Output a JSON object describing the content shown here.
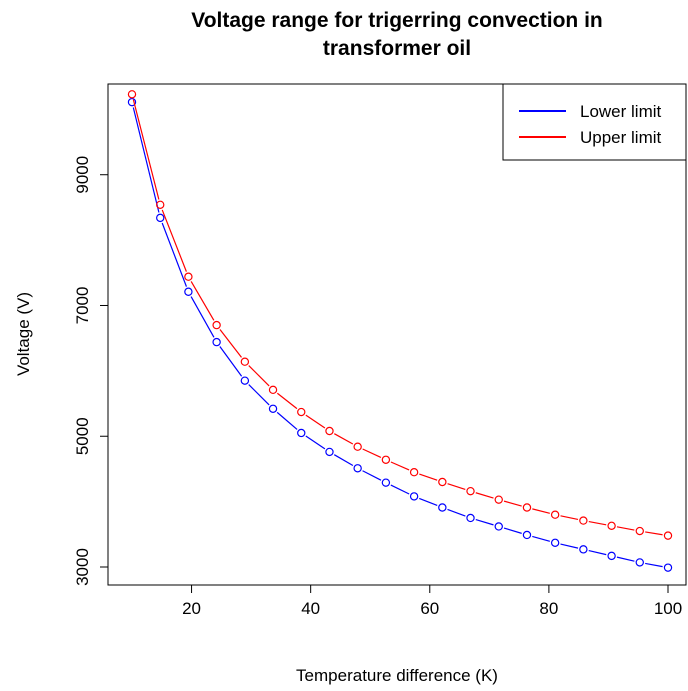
{
  "chart_data": {
    "type": "line",
    "title": "Voltage range for trigerring convection in transformer oil",
    "title_lines": [
      "Voltage range for trigerring convection in",
      "transformer oil"
    ],
    "xlabel": "Temperature difference (K)",
    "ylabel": "Voltage (V)",
    "xlim": [
      10,
      100
    ],
    "ylim": [
      3000,
      10250
    ],
    "x_ticks": [
      20,
      40,
      60,
      80,
      100
    ],
    "y_ticks": [
      3000,
      5000,
      7000,
      9000
    ],
    "grid": false,
    "legend_position": "top-right",
    "x": [
      10,
      14.74,
      19.47,
      24.21,
      28.95,
      33.68,
      38.42,
      43.16,
      47.89,
      52.63,
      57.37,
      62.11,
      66.84,
      71.58,
      76.32,
      81.05,
      85.79,
      90.53,
      95.26,
      100
    ],
    "series": [
      {
        "name": "Lower limit",
        "color": "#0000ff",
        "values": [
          10110,
          8340,
          7210,
          6440,
          5850,
          5420,
          5050,
          4760,
          4510,
          4290,
          4080,
          3910,
          3750,
          3620,
          3490,
          3370,
          3270,
          3170,
          3070,
          2990
        ]
      },
      {
        "name": "Upper limit",
        "color": "#ff0000",
        "values": [
          10230,
          8540,
          7440,
          6700,
          6140,
          5710,
          5370,
          5080,
          4840,
          4640,
          4450,
          4300,
          4160,
          4030,
          3910,
          3800,
          3710,
          3630,
          3550,
          3480
        ]
      }
    ]
  }
}
